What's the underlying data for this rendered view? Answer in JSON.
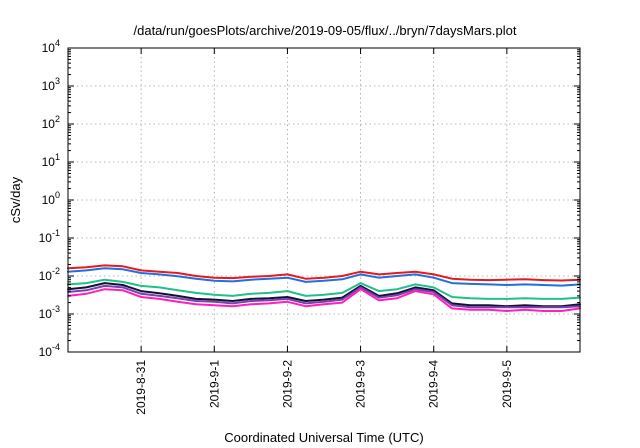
{
  "chart_data": {
    "type": "line",
    "title": "/data/run/goesPlots/archive/2019-09-05/flux/../bryn/7daysMars.plot",
    "xlabel": "Coordinated Universal Time (UTC)",
    "ylabel": "cSv/day",
    "yscale": "log",
    "ylim": [
      0.0001,
      10000
    ],
    "y_ticks": [
      {
        "base": "10",
        "exp": "-4",
        "value": 0.0001
      },
      {
        "base": "10",
        "exp": "-3",
        "value": 0.001
      },
      {
        "base": "10",
        "exp": "-2",
        "value": 0.01
      },
      {
        "base": "10",
        "exp": "-1",
        "value": 0.1
      },
      {
        "base": "10",
        "exp": "0",
        "value": 1
      },
      {
        "base": "10",
        "exp": "1",
        "value": 10
      },
      {
        "base": "10",
        "exp": "2",
        "value": 100
      },
      {
        "base": "10",
        "exp": "3",
        "value": 1000
      },
      {
        "base": "10",
        "exp": "4",
        "value": 10000
      }
    ],
    "xlim": [
      "2019-08-30T00:00",
      "2019-09-06T00:00"
    ],
    "x_ticks": [
      "2019-8-31",
      "2019-9-1",
      "2019-9-2",
      "2019-9-3",
      "2019-9-4",
      "2019-9-5"
    ],
    "grid": true,
    "x": [
      "2019-08-30T00:00",
      "2019-08-30T06:00",
      "2019-08-30T12:00",
      "2019-08-30T18:00",
      "2019-08-31T00:00",
      "2019-08-31T06:00",
      "2019-08-31T12:00",
      "2019-08-31T18:00",
      "2019-09-01T00:00",
      "2019-09-01T06:00",
      "2019-09-01T12:00",
      "2019-09-01T18:00",
      "2019-09-02T00:00",
      "2019-09-02T06:00",
      "2019-09-02T12:00",
      "2019-09-02T18:00",
      "2019-09-03T00:00",
      "2019-09-03T06:00",
      "2019-09-03T12:00",
      "2019-09-03T18:00",
      "2019-09-04T00:00",
      "2019-09-04T06:00",
      "2019-09-04T12:00",
      "2019-09-04T18:00",
      "2019-09-05T00:00",
      "2019-09-05T06:00",
      "2019-09-05T12:00",
      "2019-09-05T18:00",
      "2019-09-06T00:00"
    ],
    "series": [
      {
        "color": "#e41a1c",
        "values": [
          0.016,
          0.017,
          0.019,
          0.018,
          0.014,
          0.013,
          0.012,
          0.01,
          0.009,
          0.0088,
          0.0095,
          0.01,
          0.011,
          0.0085,
          0.009,
          0.01,
          0.013,
          0.011,
          0.012,
          0.013,
          0.011,
          0.0085,
          0.008,
          0.0078,
          0.008,
          0.0082,
          0.0078,
          0.0076,
          0.008
        ]
      },
      {
        "color": "#1f6fe0",
        "values": [
          0.013,
          0.014,
          0.016,
          0.015,
          0.012,
          0.011,
          0.0098,
          0.0085,
          0.0075,
          0.0072,
          0.008,
          0.0085,
          0.009,
          0.007,
          0.0075,
          0.0082,
          0.011,
          0.009,
          0.01,
          0.011,
          0.009,
          0.0065,
          0.0062,
          0.006,
          0.0058,
          0.006,
          0.0058,
          0.0056,
          0.006
        ]
      },
      {
        "color": "#20c08a",
        "values": [
          0.006,
          0.0065,
          0.008,
          0.007,
          0.0055,
          0.005,
          0.0042,
          0.0036,
          0.0032,
          0.003,
          0.0034,
          0.0036,
          0.004,
          0.003,
          0.0032,
          0.0036,
          0.0065,
          0.004,
          0.0045,
          0.006,
          0.005,
          0.0028,
          0.0026,
          0.0025,
          0.0025,
          0.0026,
          0.0025,
          0.0025,
          0.0027
        ]
      },
      {
        "color": "#111133",
        "values": [
          0.0045,
          0.005,
          0.0065,
          0.0058,
          0.004,
          0.0035,
          0.003,
          0.0025,
          0.0024,
          0.0022,
          0.0025,
          0.0026,
          0.0028,
          0.0022,
          0.0024,
          0.0027,
          0.0055,
          0.003,
          0.0035,
          0.005,
          0.0042,
          0.0019,
          0.0017,
          0.0017,
          0.0016,
          0.0017,
          0.0016,
          0.0016,
          0.0018
        ]
      },
      {
        "color": "#7b3fb0",
        "values": [
          0.0038,
          0.0042,
          0.0055,
          0.005,
          0.0034,
          0.003,
          0.0026,
          0.0022,
          0.0021,
          0.0019,
          0.0022,
          0.0023,
          0.0025,
          0.0019,
          0.0021,
          0.0024,
          0.005,
          0.0027,
          0.0031,
          0.0045,
          0.0038,
          0.0017,
          0.0015,
          0.0015,
          0.0015,
          0.0015,
          0.0015,
          0.0015,
          0.0016
        ]
      },
      {
        "color": "#ff1fbf",
        "values": [
          0.003,
          0.0034,
          0.0045,
          0.0042,
          0.0028,
          0.0025,
          0.0021,
          0.0018,
          0.0017,
          0.0016,
          0.0018,
          0.0019,
          0.0021,
          0.0016,
          0.0018,
          0.002,
          0.0045,
          0.0023,
          0.0026,
          0.004,
          0.0033,
          0.0014,
          0.0013,
          0.0013,
          0.0012,
          0.0013,
          0.0012,
          0.0012,
          0.0014
        ]
      }
    ]
  }
}
